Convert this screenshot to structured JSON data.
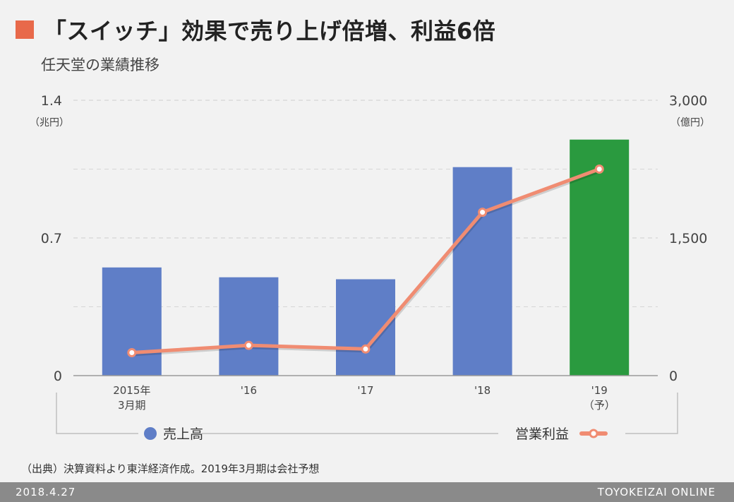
{
  "header": {
    "title": "「スイッチ」効果で売り上げ倍増、利益6倍",
    "subtitle": "任天堂の業績推移"
  },
  "colors": {
    "title_square": "#e8694a",
    "bar_normal": "#5f7ec7",
    "bar_forecast": "#2a9a3f",
    "line": "#f08c72",
    "grid": "#d6d6d6",
    "axis": "#9a9a9a"
  },
  "chart_data": {
    "type": "bar+line",
    "categories": [
      {
        "line1": "2015年",
        "line2": "3月期"
      },
      {
        "line1": "'16",
        "line2": ""
      },
      {
        "line1": "'17",
        "line2": ""
      },
      {
        "line1": "'18",
        "line2": ""
      },
      {
        "line1": "'19",
        "line2": "（予）"
      }
    ],
    "bars": {
      "name": "売上高",
      "axis": "left",
      "values": [
        0.55,
        0.5,
        0.49,
        1.06,
        1.2
      ],
      "forecast_index": 4
    },
    "line": {
      "name": "営業利益",
      "axis": "right",
      "values": [
        250,
        330,
        290,
        1780,
        2250
      ]
    },
    "left_axis": {
      "unit": "（兆円）",
      "min": 0,
      "max": 1.4,
      "ticks": [
        {
          "v": 0,
          "label": "0"
        },
        {
          "v": 0.7,
          "label": "0.7"
        },
        {
          "v": 1.4,
          "label": "1.4"
        }
      ],
      "minor_ticks": [
        0.35,
        1.05
      ]
    },
    "right_axis": {
      "unit": "（億円）",
      "min": 0,
      "max": 3000,
      "ticks": [
        {
          "v": 0,
          "label": "0"
        },
        {
          "v": 1500,
          "label": "1,500"
        },
        {
          "v": 3000,
          "label": "3,000"
        }
      ]
    },
    "legend": {
      "bar_label": "売上高",
      "line_label": "営業利益",
      "placement": "bottom"
    }
  },
  "note": "（出典）決算資料より東洋経済作成。2019年3月期は会社予想",
  "footer": {
    "date": "2018.4.27",
    "brand": "TOYOKEIZAI ONLINE"
  }
}
